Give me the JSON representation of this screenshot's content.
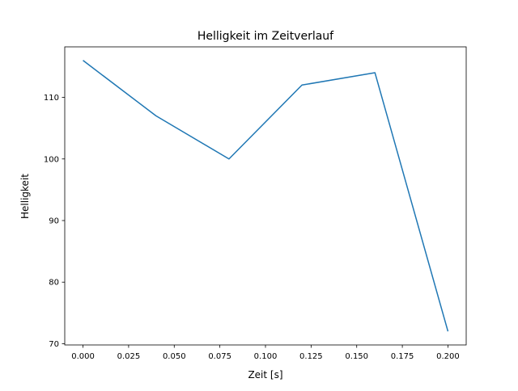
{
  "chart_data": {
    "type": "line",
    "title": "Helligkeit im Zeitverlauf",
    "xlabel": "Zeit [s]",
    "ylabel": "Helligkeit",
    "x": [
      0.0,
      0.04,
      0.08,
      0.12,
      0.16,
      0.2
    ],
    "series": [
      {
        "name": "Helligkeit",
        "values": [
          116,
          107,
          100,
          112,
          114,
          72
        ],
        "color": "#1f77b4"
      }
    ],
    "xlim": [
      -0.01,
      0.21
    ],
    "ylim": [
      69.8,
      118.2
    ],
    "xticks": [
      0.0,
      0.025,
      0.05,
      0.075,
      0.1,
      0.125,
      0.15,
      0.175,
      0.2
    ],
    "xtick_labels": [
      "0.000",
      "0.025",
      "0.050",
      "0.075",
      "0.100",
      "0.125",
      "0.150",
      "0.175",
      "0.200"
    ],
    "yticks": [
      70,
      80,
      90,
      100,
      110
    ],
    "ytick_labels": [
      "70",
      "80",
      "90",
      "100",
      "110"
    ],
    "grid": false,
    "legend": "none"
  }
}
